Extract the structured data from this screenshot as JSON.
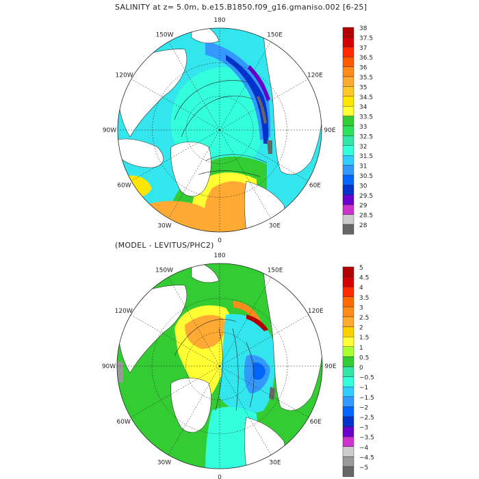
{
  "panels": [
    {
      "title": "SALINITY at z=    5.0m, b.e15.B1850.f09_g16.gmaniso.002 [6-25]",
      "lon_labels": [
        "180",
        "150E",
        "120E",
        "90E",
        "60E",
        "30E",
        "0",
        "30W",
        "60W",
        "90W",
        "120W",
        "150W"
      ],
      "colorbar": {
        "labels": [
          "38",
          "37.5",
          "37",
          "36.5",
          "36",
          "35.5",
          "35",
          "34.5",
          "34",
          "33.5",
          "33",
          "32.5",
          "32",
          "31.5",
          "31",
          "30.5",
          "30",
          "29.5",
          "29",
          "28.5",
          "28"
        ],
        "colors": [
          "#b30000",
          "#d40000",
          "#ff2a00",
          "#ff5a00",
          "#ff8c1a",
          "#ffaa33",
          "#ffc829",
          "#ffe600",
          "#ffff33",
          "#33cc33",
          "#2ee05a",
          "#33e6a8",
          "#33ffdd",
          "#33ccff",
          "#3399ff",
          "#0066ff",
          "#0033cc",
          "#6a00cc",
          "#cc33cc",
          "#cccccc",
          "#666666"
        ]
      }
    },
    {
      "title": "(MODEL - LEVITUS/PHC2)",
      "lon_labels": [
        "180",
        "150E",
        "120E",
        "90E",
        "60E",
        "30E",
        "0",
        "30W",
        "60W",
        "90W",
        "120W",
        "150W"
      ],
      "colorbar": {
        "labels": [
          "5",
          "4.5",
          "4",
          "3.5",
          "3",
          "2.5",
          "2",
          "1.5",
          "1",
          "0.5",
          "0",
          "−0.5",
          "−1",
          "−1.5",
          "−2",
          "−2.5",
          "−3",
          "−3.5",
          "−4",
          "−4.5",
          "−5"
        ],
        "colors": [
          "#b30000",
          "#d40000",
          "#ff2a00",
          "#ff6a00",
          "#ff8c1a",
          "#ffaa33",
          "#ffd000",
          "#ffff33",
          "#aaff33",
          "#33cc33",
          "#33e6a8",
          "#33ffdd",
          "#33ccff",
          "#3399ff",
          "#0066ff",
          "#0033cc",
          "#6a00cc",
          "#cc33cc",
          "#cccccc",
          "#999999",
          "#666666"
        ]
      }
    }
  ],
  "field_colors": {
    "cyan": "#33e6ee",
    "light_cyan": "#5ff0ff",
    "blue": "#0066ff",
    "dark_blue": "#0033cc",
    "purple": "#6a00cc",
    "magenta": "#cc33cc",
    "green": "#33cc33",
    "yellow": "#ffff33",
    "orange": "#ffaa33",
    "dark_orange": "#ff8c1a",
    "grey": "#666666"
  }
}
